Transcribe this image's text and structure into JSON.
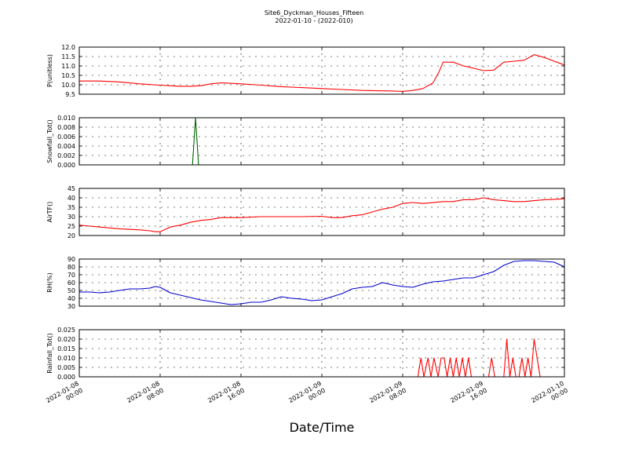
{
  "figure": {
    "title": "Site6_Dyckman_Houses_Fifteen",
    "subtitle": "2022-01-10 - (2022-010)",
    "xlabel": "Date/Time"
  },
  "chart_data": [
    {
      "type": "line",
      "ylabel": "P(unitless)",
      "ylim": [
        9.5,
        12.0
      ],
      "yticks": [
        "9.5",
        "10.0",
        "10.5",
        "11.0",
        "11.5",
        "12.0"
      ],
      "xlim_hours": [
        0,
        48
      ],
      "grid": true,
      "color": "#ff0000",
      "series": [
        {
          "x": [
            0,
            2,
            4,
            6,
            8,
            9,
            10,
            11,
            12,
            13,
            14,
            16,
            18,
            20,
            22,
            24,
            26,
            28,
            30,
            31,
            32,
            33,
            34,
            35,
            35.6,
            36,
            37,
            38,
            38.5,
            39,
            40,
            41,
            42,
            42.5,
            43,
            44,
            45,
            46,
            47,
            48
          ],
          "y": [
            10.2,
            10.2,
            10.15,
            10.05,
            9.98,
            9.95,
            9.92,
            9.92,
            9.95,
            10.05,
            10.1,
            10.05,
            9.98,
            9.9,
            9.85,
            9.8,
            9.75,
            9.7,
            9.68,
            9.67,
            9.65,
            9.7,
            9.8,
            10.1,
            10.7,
            11.2,
            11.2,
            11.0,
            10.95,
            10.88,
            10.75,
            10.78,
            11.2,
            11.22,
            11.25,
            11.3,
            11.6,
            11.45,
            11.25,
            11.05
          ]
        }
      ]
    },
    {
      "type": "line",
      "ylabel": "Snowfall_Tot()",
      "ylim": [
        0,
        0.01
      ],
      "yticks": [
        "0.000",
        "0.002",
        "0.004",
        "0.006",
        "0.008",
        "0.010"
      ],
      "xlim_hours": [
        0,
        48
      ],
      "grid": true,
      "color": "#006400",
      "series": [
        {
          "x": [
            0,
            11.2,
            11.5,
            11.8,
            48
          ],
          "y": [
            0,
            0,
            0.01,
            0,
            0
          ]
        }
      ]
    },
    {
      "type": "line",
      "ylabel": "AirTF()",
      "ylim": [
        20,
        45
      ],
      "yticks": [
        "20",
        "25",
        "30",
        "35",
        "40",
        "45"
      ],
      "xlim_hours": [
        0,
        48
      ],
      "grid": true,
      "color": "#ff0000",
      "series": [
        {
          "x": [
            0,
            1,
            2,
            4,
            6,
            7,
            7.5,
            8,
            9,
            10,
            11,
            12,
            13,
            14,
            16,
            18,
            20,
            22,
            24,
            25,
            26,
            27,
            28,
            29,
            30,
            31,
            32,
            33,
            34,
            36,
            37,
            38,
            39,
            40,
            41,
            42,
            43,
            44,
            45,
            46,
            47,
            48
          ],
          "y": [
            25.5,
            25,
            24.5,
            23.5,
            23,
            22.5,
            22,
            22,
            24.5,
            25.5,
            27,
            28,
            28.5,
            29.5,
            29.5,
            30,
            30,
            30,
            30.2,
            29.5,
            29.5,
            30.5,
            31,
            32.5,
            34,
            35,
            37,
            37.5,
            37,
            38,
            38,
            39,
            39,
            40,
            39,
            38.5,
            38,
            38,
            38.5,
            39,
            39.2,
            39.5
          ]
        }
      ]
    },
    {
      "type": "line",
      "ylabel": "RH(%)",
      "ylim": [
        30,
        90
      ],
      "yticks": [
        "30",
        "40",
        "50",
        "60",
        "70",
        "80",
        "90"
      ],
      "xlim_hours": [
        0,
        48
      ],
      "grid": true,
      "color": "#0000cd",
      "series": [
        {
          "x": [
            0,
            1,
            2,
            3,
            4,
            5,
            6,
            7,
            7.5,
            8,
            9,
            10,
            11,
            12,
            13,
            14,
            15,
            16,
            17,
            18,
            19,
            20,
            21,
            22,
            23,
            24,
            25,
            26,
            27,
            28,
            29,
            30,
            31,
            32,
            33,
            34,
            35,
            36,
            37,
            38,
            39,
            40,
            41,
            42,
            43,
            44,
            45,
            46,
            47,
            48
          ],
          "y": [
            48,
            48,
            47,
            48,
            50,
            52,
            52,
            53,
            55,
            54,
            47,
            44,
            41,
            38,
            36,
            34,
            32,
            33,
            35,
            35,
            38,
            42,
            40,
            39,
            37,
            38,
            42,
            46,
            52,
            54,
            55,
            60,
            57,
            55,
            54,
            58,
            61,
            62,
            64,
            66,
            66,
            70,
            74,
            82,
            87,
            88,
            88,
            87,
            86,
            80
          ]
        }
      ]
    },
    {
      "type": "line",
      "ylabel": "Rainfall_Tot()",
      "ylim": [
        0,
        0.025
      ],
      "yticks": [
        "0.000",
        "0.005",
        "0.010",
        "0.015",
        "0.020",
        "0.025"
      ],
      "xlim_hours": [
        0,
        48
      ],
      "grid": true,
      "color": "#ff0000",
      "series": [
        {
          "x": [
            0,
            33.5,
            33.8,
            34.1,
            34.5,
            34.8,
            35.1,
            35.5,
            35.8,
            36.1,
            36.4,
            36.7,
            37.0,
            37.3,
            37.6,
            37.9,
            38.2,
            38.5,
            38.8,
            39.1,
            40.5,
            40.8,
            41.1,
            42.0,
            42.3,
            42.6,
            42.9,
            43.2,
            43.5,
            43.8,
            44.1,
            44.4,
            44.7,
            45.0,
            45.3,
            45.6,
            48
          ],
          "y": [
            0,
            0,
            0.01,
            0,
            0.01,
            0,
            0.01,
            0,
            0.01,
            0.01,
            0,
            0.01,
            0,
            0.01,
            0,
            0.01,
            0,
            0.01,
            0,
            0,
            0,
            0.01,
            0,
            0,
            0.02,
            0,
            0.01,
            0,
            0,
            0.01,
            0,
            0.01,
            0,
            0.02,
            0.01,
            0,
            0
          ]
        }
      ]
    }
  ],
  "xticks": [
    {
      "hour": 0,
      "label": "2022-01-08\n00:00"
    },
    {
      "hour": 8,
      "label": "2022-01-08\n08:00"
    },
    {
      "hour": 16,
      "label": "2022-01-08\n16:00"
    },
    {
      "hour": 24,
      "label": "2022-01-09\n00:00"
    },
    {
      "hour": 32,
      "label": "2022-01-09\n08:00"
    },
    {
      "hour": 40,
      "label": "2022-01-09\n16:00"
    },
    {
      "hour": 48,
      "label": "2022-01-10\n00:00"
    }
  ]
}
